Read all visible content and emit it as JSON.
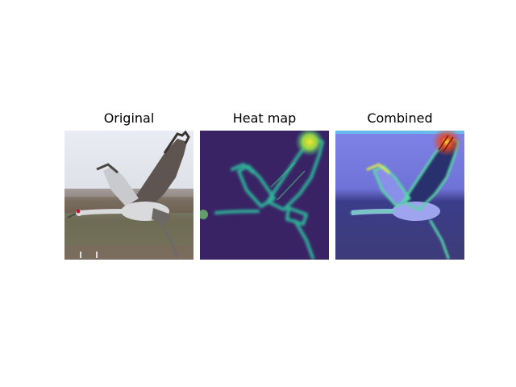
{
  "figure": {
    "panels": [
      {
        "title": "Original"
      },
      {
        "title": "Heat map"
      },
      {
        "title": "Combined"
      }
    ]
  },
  "colors": {
    "sky": "#e3e6ee",
    "field": "#7a6a5a",
    "heatmap_background": "#3b0f5c",
    "heatmap_edge": "#35c2a0",
    "heatmap_hot": "#f2e52a",
    "overlay_tint": "#5a5cd8"
  },
  "icons": {
    "original": "crane-photo",
    "heatmap": "crane-heatmap",
    "combined": "crane-overlay"
  }
}
